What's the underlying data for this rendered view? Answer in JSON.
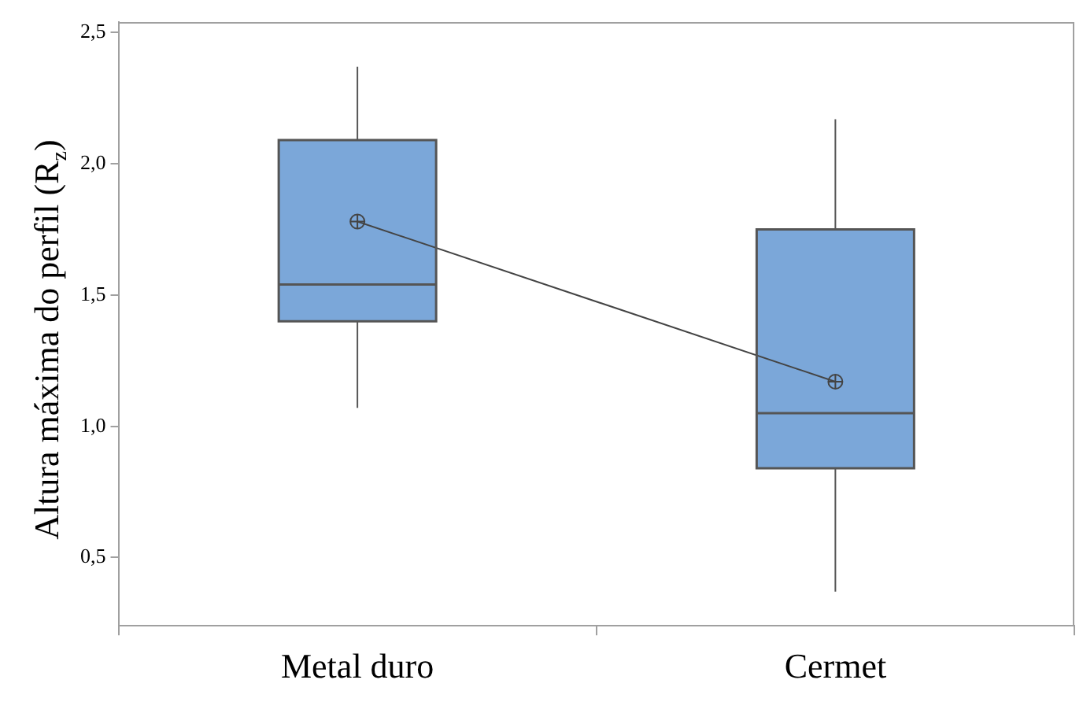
{
  "chart_data": {
    "type": "box",
    "ylabel": "Altura máxima do perfil (R$_{z}$)",
    "categories": [
      "Metal duro",
      "Cermet"
    ],
    "color": "#7ba7d9",
    "boxes": [
      {
        "low": 1.07,
        "q1": 1.4,
        "median": 1.54,
        "q3": 2.09,
        "high": 2.37
      },
      {
        "low": 0.37,
        "q1": 0.84,
        "median": 1.05,
        "q3": 1.75,
        "high": 2.17
      }
    ],
    "series": [
      {
        "type": "line",
        "values": [
          1.78,
          1.17
        ],
        "color": "#444444",
        "marker": "circle"
      }
    ],
    "ylim": [
      0.24,
      2.54
    ],
    "yticks": [
      {
        "value": 0.5,
        "label": "0,5"
      },
      {
        "value": 1,
        "label": "1,0"
      },
      {
        "value": 1.5,
        "label": "1,5"
      },
      {
        "value": 2,
        "label": "2,0"
      },
      {
        "value": 2.5,
        "label": "2,5"
      }
    ],
    "grid": false
  }
}
